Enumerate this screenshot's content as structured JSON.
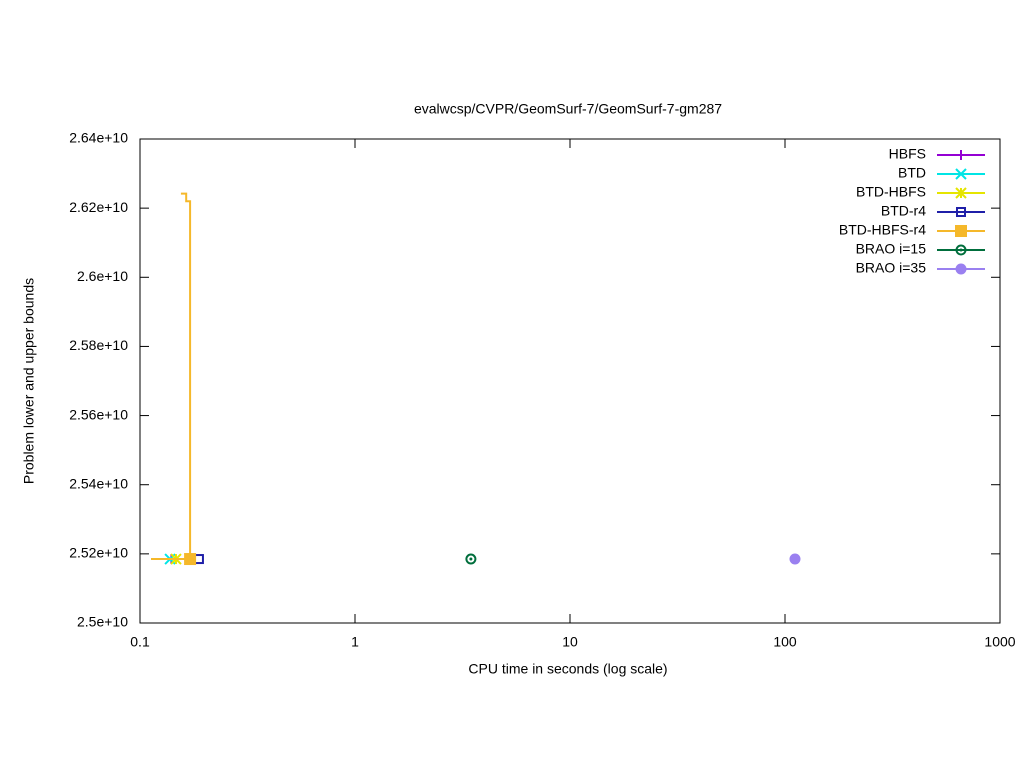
{
  "chart_data": {
    "type": "line",
    "title": "evalwcsp/CVPR/GeomSurf-7/GeomSurf-7-gm287",
    "x_label": "CPU time in seconds (log scale)",
    "y_label": "Problem lower and upper bounds",
    "x_scale": "log",
    "xlim": [
      0.1,
      1000
    ],
    "xticks": [
      0.1,
      1,
      10,
      100,
      1000
    ],
    "ylim": [
      25000000000,
      26400000000
    ],
    "yticks": [
      {
        "value": 25000000000,
        "label": "2.5e+10"
      },
      {
        "value": 25200000000,
        "label": "2.52e+10"
      },
      {
        "value": 25400000000,
        "label": "2.54e+10"
      },
      {
        "value": 25600000000,
        "label": "2.56e+10"
      },
      {
        "value": 25800000000,
        "label": "2.58e+10"
      },
      {
        "value": 26000000000,
        "label": "2.6e+10"
      },
      {
        "value": 26200000000,
        "label": "2.62e+10"
      },
      {
        "value": 26400000000,
        "label": "2.64e+10"
      }
    ],
    "legend": "top-right",
    "series": [
      {
        "name": "HBFS",
        "color": "#9400d3",
        "marker": "plus",
        "x": [
          0.14
        ],
        "values": [
          25185000000
        ]
      },
      {
        "name": "BTD",
        "color": "#00e5e5",
        "marker": "cross",
        "x": [
          0.138
        ],
        "values": [
          25185000000
        ]
      },
      {
        "name": "BTD-HBFS",
        "color": "#e5e500",
        "marker": "star",
        "x": [
          0.147
        ],
        "values": [
          25185000000
        ]
      },
      {
        "name": "BTD-r4",
        "color": "#1f1fa8",
        "marker": "open-square",
        "x": [
          0.188
        ],
        "values": [
          25185000000
        ]
      },
      {
        "name": "BTD-HBFS-r4",
        "color": "#f5b82a",
        "marker": "filled-square",
        "x": [
          0.1125,
          0.171,
          0.16,
          0.155,
          0.164,
          0.164,
          0.171,
          0.171
        ],
        "values": [
          25185000000,
          25185000000,
          null,
          26242000000,
          26242000000,
          26220000000,
          26220000000,
          25185000000
        ]
      },
      {
        "name": "BRAO i=15",
        "color": "#006e3c",
        "marker": "open-circle",
        "x": [
          3.46
        ],
        "values": [
          25185000000
        ]
      },
      {
        "name": "BRAO i=35",
        "color": "#9a80f0",
        "marker": "filled-circle",
        "x": [
          111.3
        ],
        "values": [
          25185000000
        ]
      }
    ]
  }
}
